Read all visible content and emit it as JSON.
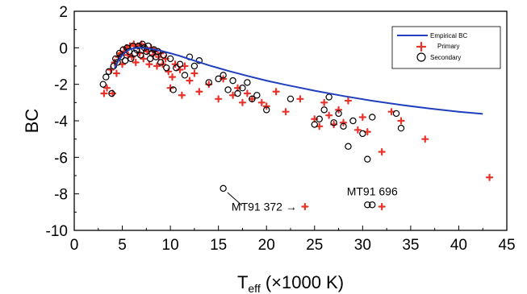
{
  "chart_data": {
    "type": "scatter",
    "title": "",
    "xlabel": {
      "main": "T",
      "sub": "eff",
      "rest": " (×1000 K)"
    },
    "ylabel": "BC",
    "xlim": [
      0,
      45
    ],
    "ylim": [
      -10,
      2
    ],
    "xticks": [
      0,
      5,
      10,
      15,
      20,
      25,
      30,
      35,
      40,
      45
    ],
    "yticks": [
      -10,
      -8,
      -6,
      -4,
      -2,
      0,
      2
    ],
    "grid": false,
    "legend_position": "top-right",
    "colors": {
      "curve": "#1f3fbf",
      "primary": "#e8332a",
      "secondary": "#000000"
    },
    "curve": {
      "name": "Empirical BC",
      "x": [
        4.2,
        4.6,
        5.0,
        5.4,
        5.8,
        6.2,
        6.6,
        7.0,
        7.5,
        8.0,
        9,
        10,
        11,
        12,
        13,
        14,
        15,
        16,
        18,
        20,
        22,
        25,
        28,
        31,
        34,
        37,
        40,
        42.5
      ],
      "y": [
        -1.1,
        -0.7,
        -0.4,
        -0.2,
        -0.08,
        -0.03,
        0.0,
        0.0,
        -0.02,
        -0.06,
        -0.16,
        -0.3,
        -0.45,
        -0.62,
        -0.79,
        -0.96,
        -1.11,
        -1.26,
        -1.54,
        -1.8,
        -2.03,
        -2.35,
        -2.64,
        -2.9,
        -3.13,
        -3.33,
        -3.5,
        -3.62
      ]
    },
    "primary": {
      "name": "Primary",
      "x": [
        3.1,
        3.4,
        3.8,
        4.0,
        4.2,
        4.4,
        4.6,
        4.8,
        5.0,
        5.2,
        5.4,
        5.6,
        5.8,
        6.0,
        6.2,
        6.4,
        6.6,
        6.8,
        7.0,
        7.2,
        7.4,
        7.6,
        7.8,
        8.0,
        8.2,
        8.4,
        8.6,
        8.8,
        9.0,
        9.2,
        9.5,
        9.8,
        10.0,
        10.2,
        10.5,
        11.0,
        11.2,
        11.5,
        12.0,
        12.5,
        13.0,
        14.0,
        15.0,
        15.5,
        16.5,
        17.0,
        17.5,
        18.0,
        18.5,
        19.5,
        20.0,
        21.0,
        22.0,
        23.5,
        25.0,
        25.5,
        26.0,
        26.5,
        27.0,
        27.5,
        28.0,
        28.5,
        29.5,
        30.0,
        30.5,
        32.0,
        33.0,
        34.0,
        36.5,
        43.2,
        24.0,
        32.0
      ],
      "y": [
        -2.5,
        -2.2,
        -1.2,
        -2.5,
        -0.8,
        -1.4,
        -0.5,
        -0.3,
        -0.9,
        -0.2,
        0.0,
        -0.4,
        0.1,
        -0.5,
        0.2,
        -0.8,
        0.1,
        -0.3,
        0.2,
        -0.6,
        0.0,
        -0.2,
        -0.9,
        0.0,
        -0.4,
        -0.2,
        -1.0,
        -0.5,
        -0.3,
        -0.9,
        -0.6,
        -1.3,
        -2.2,
        -1.6,
        -0.9,
        -1.2,
        -2.6,
        -1.0,
        -1.8,
        -1.4,
        -2.4,
        -2.0,
        -2.8,
        -1.7,
        -2.6,
        -2.2,
        -3.0,
        -2.5,
        -2.8,
        -3.0,
        -3.2,
        -2.4,
        -3.5,
        -2.8,
        -3.9,
        -4.3,
        -3.0,
        -3.7,
        -4.2,
        -3.4,
        -4.1,
        -2.9,
        -4.5,
        -3.8,
        -4.6,
        -5.7,
        -3.5,
        -4.0,
        -5.0,
        -7.1,
        -8.7,
        -8.7
      ]
    },
    "secondary": {
      "name": "Secondary",
      "x": [
        3.0,
        3.3,
        3.6,
        3.9,
        4.1,
        4.3,
        4.5,
        4.7,
        4.9,
        5.1,
        5.3,
        5.5,
        5.7,
        5.9,
        6.1,
        6.3,
        6.5,
        6.7,
        6.9,
        7.1,
        7.3,
        7.5,
        7.7,
        7.9,
        8.1,
        8.3,
        8.5,
        8.7,
        9.0,
        9.3,
        9.6,
        10.0,
        10.3,
        10.6,
        11.0,
        11.5,
        12.0,
        12.5,
        13.0,
        14.0,
        15.0,
        15.5,
        16.0,
        16.5,
        17.0,
        17.5,
        18.0,
        18.5,
        19.0,
        20.0,
        22.5,
        25.0,
        25.5,
        26.0,
        26.5,
        27.0,
        27.5,
        28.0,
        28.5,
        29.0,
        30.0,
        30.5,
        31.0,
        33.5,
        34.0,
        15.5,
        30.5,
        31.0
      ],
      "y": [
        -2.0,
        -1.6,
        -1.3,
        -2.5,
        -1.0,
        -0.6,
        -0.8,
        -0.3,
        -0.5,
        -0.1,
        -0.7,
        0.0,
        -0.2,
        -0.6,
        0.1,
        -0.3,
        -0.1,
        0.1,
        -0.4,
        0.2,
        0.0,
        -0.2,
        0.1,
        -0.6,
        -0.3,
        -0.1,
        -0.5,
        -0.2,
        -0.8,
        -0.4,
        -1.1,
        -0.6,
        -2.3,
        -1.1,
        -0.9,
        -1.5,
        -0.5,
        -1.0,
        -0.7,
        -1.9,
        -1.7,
        -1.5,
        -2.3,
        -1.8,
        -2.5,
        -2.2,
        -1.9,
        -2.8,
        -2.6,
        -3.4,
        -2.8,
        -4.2,
        -3.9,
        -3.4,
        -2.7,
        -4.1,
        -3.6,
        -4.3,
        -5.4,
        -4.0,
        -4.7,
        -6.1,
        -3.8,
        -3.6,
        -4.4,
        -7.7,
        -8.6,
        -8.6
      ]
    },
    "annotations": [
      {
        "text": "MT91 372",
        "target_x": 24.0,
        "target_y": -8.7,
        "arrow": "→"
      },
      {
        "text": "MT91 696",
        "target_x": 31.0,
        "target_y": -8.6,
        "arrow": ""
      }
    ]
  }
}
